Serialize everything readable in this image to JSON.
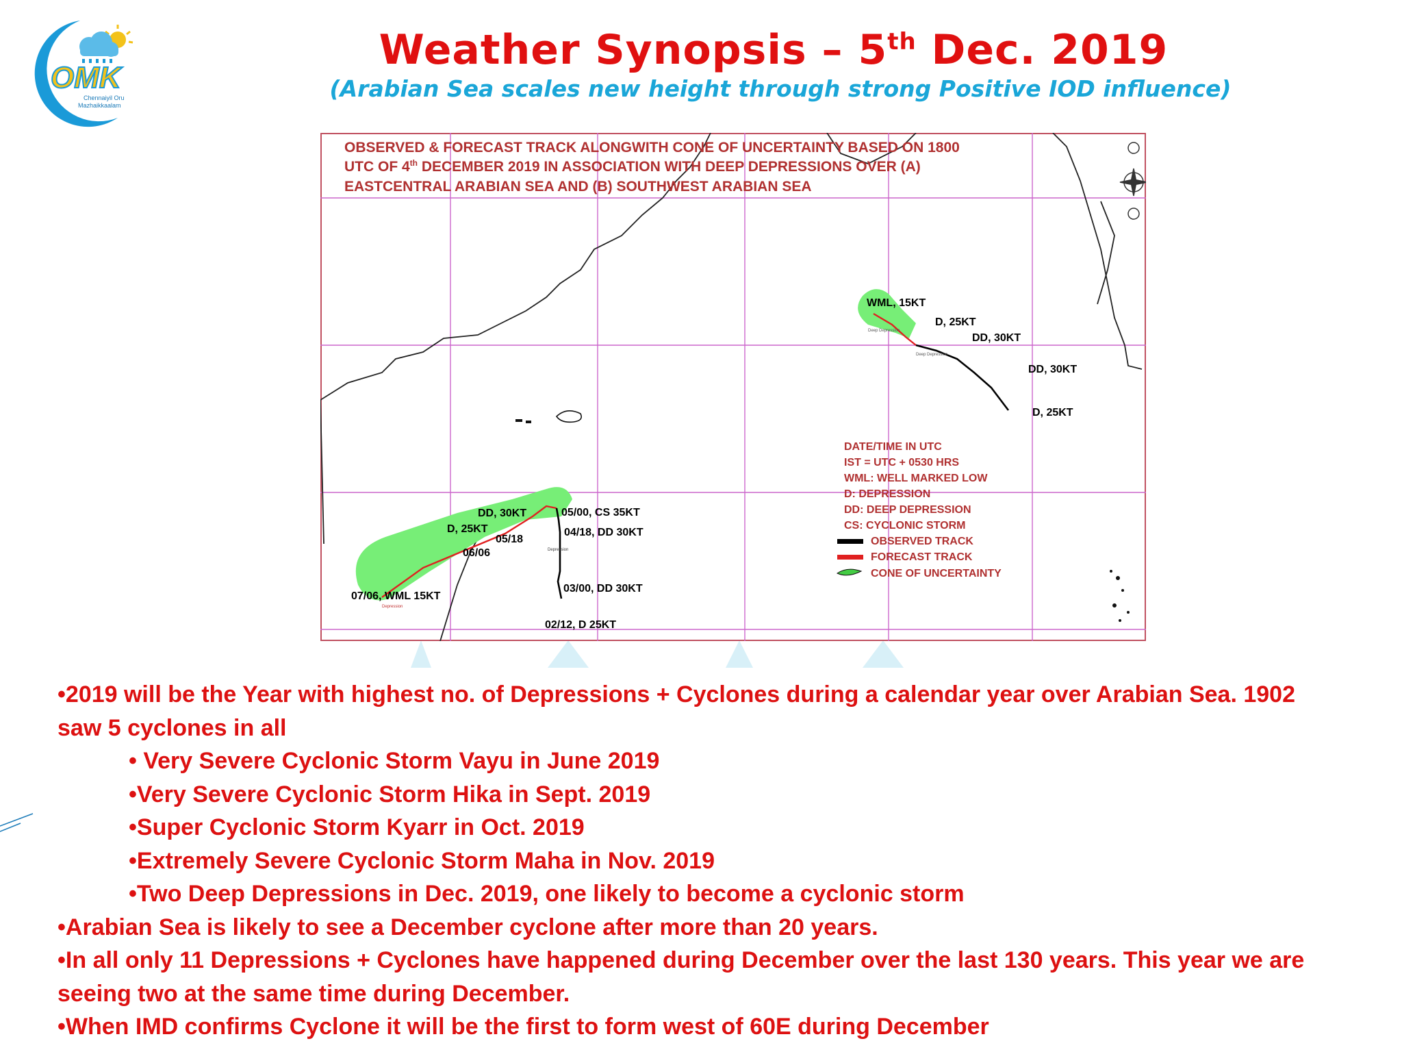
{
  "logo": {
    "text": "OMK",
    "caption_line1": "Chennaiyil Oru",
    "caption_line2": "Mazhaikkaalam"
  },
  "header": {
    "title_prefix": "Weather Synopsis – 5",
    "title_sup": "th",
    "title_suffix": " Dec. 2019",
    "subtitle": "(Arabian Sea scales new height through strong Positive IOD influence)"
  },
  "map": {
    "heading_line1": "OBSERVED & FORECAST TRACK ALONGWITH CONE OF UNCERTAINTY BASED ON 1800",
    "heading_line2_a": "UTC OF 4",
    "heading_line2_sup": "th",
    "heading_line2_b": " DECEMBER 2019 IN ASSOCIATION WITH DEEP DEPRESSIONS OVER (A)",
    "heading_line3": "EASTCENTRAL ARABIAN SEA AND (B) SOUTHWEST ARABIAN SEA",
    "system_a_labels": {
      "wml": "WML, 15KT",
      "d1": "D, 25KT",
      "dd1": "DD, 30KT",
      "dd2": "DD, 30KT",
      "d2": "D, 25KT",
      "small_deep_dep1": "Deep Depression",
      "small_deep_dep2": "Deep Depression"
    },
    "system_b_labels": {
      "wml": "07/06, WML 15KT",
      "d": "D, 25KT",
      "t0606": "06/06",
      "dd": "DD, 30KT",
      "t0518": "05/18",
      "cs": "05/00, CS 35KT",
      "dd0418": "04/18, DD 30KT",
      "dd0300": "03/00, DD 30KT",
      "d0212": "02/12, D 25KT",
      "small_dep1": "Depression",
      "small_dep2": "Depression"
    },
    "legend": {
      "l1": "DATE/TIME IN UTC",
      "l2": "IST = UTC + 0530 HRS",
      "l3": "WML: WELL MARKED LOW",
      "l4": "D: DEPRESSION",
      "l5": "DD: DEEP DEPRESSION",
      "l6": "CS: CYCLONIC STORM",
      "l7": "OBSERVED TRACK",
      "l8": "FORECAST TRACK",
      "l9": "CONE OF UNCERTAINTY"
    },
    "colors": {
      "observed": "#000000",
      "forecast": "#e02020",
      "cone": "#55dd55",
      "grid": "#cc66cc",
      "text": "#b03030"
    }
  },
  "bullets": {
    "b1_line1": "•2019 will be the Year with highest no. of Depressions + Cyclones during a calendar year over Arabian Sea. 1902",
    "b1_line2": "saw 5 cyclones in all",
    "s1": "• Very Severe Cyclonic Storm Vayu in June 2019",
    "s2": "•Very Severe Cyclonic Storm Hika in Sept. 2019",
    "s3": "•Super Cyclonic Storm Kyarr in Oct. 2019",
    "s4": "•Extremely Severe Cyclonic Storm Maha in Nov. 2019",
    "s5": "•Two Deep Depressions in Dec. 2019, one likely to become a cyclonic storm",
    "b2": "•Arabian Sea is likely to see a December cyclone after more than 20 years.",
    "b3_line1": "•In all only 11 Depressions + Cyclones have happened during December over the last 130 years. This year we are",
    "b3_line2": "seeing two at the same time during December.",
    "b4": "•When IMD confirms Cyclone it will be the first to form west of 60E during December"
  }
}
